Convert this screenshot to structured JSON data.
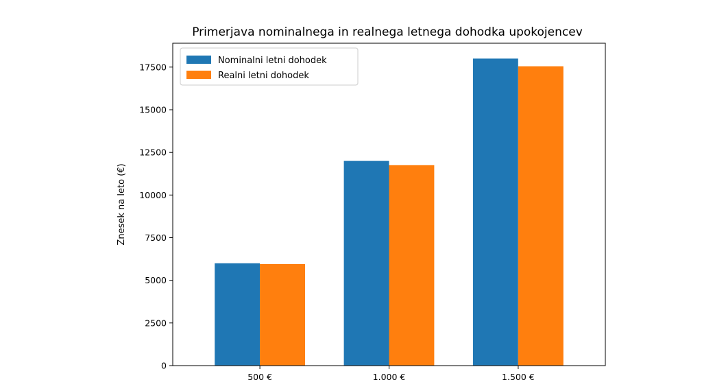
{
  "chart_data": {
    "type": "bar",
    "title": "Primerjava nominalnega in realnega letnega dohodka upokojencev",
    "xlabel": "",
    "ylabel": "Znesek na leto (€)",
    "categories": [
      "500 €",
      "1.000 €",
      "1.500 €"
    ],
    "series": [
      {
        "name": "Nominalni letni dohodek",
        "values": [
          6000,
          12000,
          18000
        ],
        "color": "#1f77b4"
      },
      {
        "name": "Realni letni dohodek",
        "values": [
          5950,
          11750,
          17550
        ],
        "color": "#ff7f0e"
      }
    ],
    "ylim": [
      0,
      18900
    ],
    "yticks": [
      0,
      2500,
      5000,
      7500,
      10000,
      12500,
      15000,
      17500
    ],
    "grid": false,
    "legend_position": "top-left"
  }
}
